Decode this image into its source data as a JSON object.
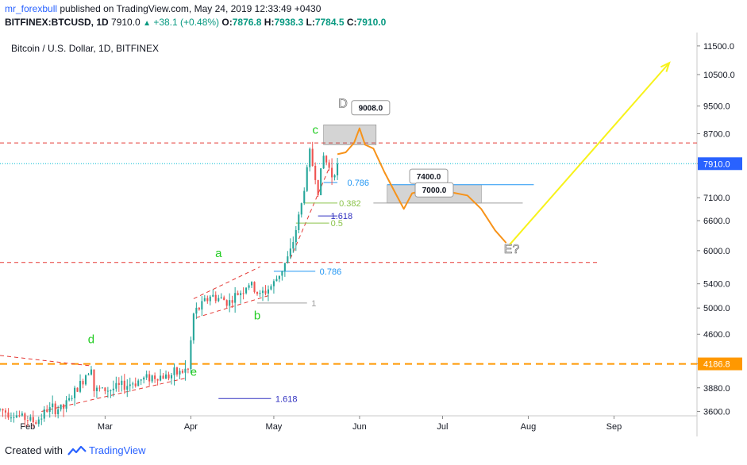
{
  "header": {
    "user": "mr_forexbull",
    "published": "published on TradingView.com, May 24, 2019 12:33:49 +0430",
    "symbol": "BITFINEX:BTCUSD, 1D",
    "last": "7910.0",
    "change": "+38.1 (+0.48%)",
    "o_label": "O:",
    "o_value": "7876.8",
    "h_label": "H:",
    "h_value": "7938.3",
    "l_label": "L:",
    "l_value": "7784.5",
    "c_label": "C:",
    "c_value": "7910.0"
  },
  "footer": {
    "created": "Created with",
    "brand": "TradingView",
    "brand_icon": "tradingview-logo-icon"
  },
  "colors": {
    "up": "#26a69a",
    "down": "#ef5350",
    "path": "#f7931a",
    "arrow": "#f7f21a",
    "wave_label": "#22cc22",
    "fib_blue": "#2196f3",
    "fib_green": "#8bc34a",
    "fib_navy": "#3030c0",
    "red_dash": "#e53935",
    "orange_dash": "#ff9800",
    "last_line": "#00bcd4",
    "last_tag": "#2962ff"
  },
  "chart_data": {
    "type": "candlestick",
    "title": "Bitcoin / U.S. Dollar, 1D, BITFINEX",
    "y_scale": "log",
    "ylim": [
      3550,
      12000
    ],
    "y_ticks": [
      11500,
      10500,
      9500,
      8700,
      7910,
      7100,
      6600,
      6000,
      5400,
      5000,
      4600,
      4186.8,
      3880,
      3600
    ],
    "y_tick_labels": [
      "11500.0",
      "10500.0",
      "9500.0",
      "8700.0",
      "7910.0",
      "7100.0",
      "6600.0",
      "6000.0",
      "5400.0",
      "5000.0",
      "4600.0",
      "4186.8",
      "3880.0",
      "3600.0"
    ],
    "x_start": "2019-01-22",
    "x_end": "2019-10-01",
    "x_ticks": [
      {
        "date": "2019-02-01",
        "label": "Feb"
      },
      {
        "date": "2019-03-01",
        "label": "Mar"
      },
      {
        "date": "2019-04-01",
        "label": "Apr"
      },
      {
        "date": "2019-05-01",
        "label": "May"
      },
      {
        "date": "2019-06-01",
        "label": "Jun"
      },
      {
        "date": "2019-07-01",
        "label": "Jul"
      },
      {
        "date": "2019-08-01",
        "label": "Aug"
      },
      {
        "date": "2019-09-01",
        "label": "Sep"
      }
    ],
    "price_path": [
      [
        "2019-01-22",
        3620
      ],
      [
        "2019-01-28",
        3560
      ],
      [
        "2019-02-04",
        3480
      ],
      [
        "2019-02-08",
        3620
      ],
      [
        "2019-02-14",
        3640
      ],
      [
        "2019-02-20",
        3920
      ],
      [
        "2019-02-24",
        4180
      ],
      [
        "2019-02-25",
        3850
      ],
      [
        "2019-03-03",
        3860
      ],
      [
        "2019-03-10",
        3930
      ],
      [
        "2019-03-17",
        4020
      ],
      [
        "2019-03-24",
        4030
      ],
      [
        "2019-03-31",
        4110
      ],
      [
        "2019-04-02",
        4900
      ],
      [
        "2019-04-08",
        5200
      ],
      [
        "2019-04-15",
        5100
      ],
      [
        "2019-04-22",
        5400
      ],
      [
        "2019-04-26",
        5200
      ],
      [
        "2019-05-01",
        5400
      ],
      [
        "2019-05-07",
        5950
      ],
      [
        "2019-05-11",
        6950
      ],
      [
        "2019-05-14",
        8200
      ],
      [
        "2019-05-17",
        7300
      ],
      [
        "2019-05-19",
        8100
      ],
      [
        "2019-05-22",
        7650
      ],
      [
        "2019-05-24",
        7910
      ]
    ],
    "projection": [
      [
        "2019-05-24",
        8150
      ],
      [
        "2019-05-27",
        8200
      ],
      [
        "2019-05-30",
        8450
      ],
      [
        "2019-06-01",
        8850
      ],
      [
        "2019-06-03",
        8400
      ],
      [
        "2019-06-06",
        8300
      ],
      [
        "2019-06-10",
        7700
      ],
      [
        "2019-06-14",
        7200
      ],
      [
        "2019-06-17",
        6850
      ],
      [
        "2019-06-20",
        7200
      ],
      [
        "2019-06-23",
        7250
      ],
      [
        "2019-06-26",
        7500
      ],
      [
        "2019-06-29",
        7400
      ],
      [
        "2019-07-02",
        7250
      ],
      [
        "2019-07-06",
        7200
      ],
      [
        "2019-07-10",
        7150
      ],
      [
        "2019-07-15",
        6850
      ],
      [
        "2019-07-20",
        6400
      ],
      [
        "2019-07-24",
        6150
      ]
    ],
    "target_arrow": [
      [
        "2019-07-25",
        6100
      ],
      [
        "2019-09-21",
        10900
      ]
    ],
    "horizontal_lines": [
      {
        "price": 8450,
        "from": "2019-01-22",
        "to": "2019-10-01",
        "style": "red-dash"
      },
      {
        "price": 5780,
        "from": "2019-01-22",
        "to": "2019-08-26",
        "style": "red-dash"
      },
      {
        "price": 4186.8,
        "from": "2019-01-22",
        "to": "2019-10-01",
        "style": "orange-dash"
      },
      {
        "price": 7910,
        "from": "2019-01-22",
        "to": "2019-10-01",
        "style": "last-price"
      }
    ],
    "trend_lines": [
      [
        [
          "2019-01-22",
          4300
        ],
        [
          "2019-02-24",
          4160
        ]
      ],
      [
        [
          "2019-02-06",
          3600
        ],
        [
          "2019-03-30",
          4000
        ]
      ],
      [
        [
          "2019-04-02",
          5150
        ],
        [
          "2019-04-26",
          5700
        ]
      ],
      [
        [
          "2019-04-03",
          4850
        ],
        [
          "2019-04-29",
          5200
        ]
      ],
      [
        [
          "2019-05-07",
          5850
        ],
        [
          "2019-05-21",
          7800
        ]
      ]
    ],
    "fib_levels": [
      {
        "label": "0.786",
        "price": 7450,
        "from": "2019-05-19",
        "to": "2019-05-24",
        "label_date": "2019-05-27",
        "color": "fib_blue"
      },
      {
        "label": "0.382",
        "price": 6980,
        "from": "2019-05-12",
        "to": "2019-05-24",
        "label_date": "2019-05-24",
        "color": "fib_green"
      },
      {
        "label": "1.618",
        "price": 6700,
        "from": "2019-05-17",
        "to": "2019-05-24",
        "label_date": "2019-05-21",
        "color": "fib_navy"
      },
      {
        "label": "0.5",
        "price": 6550,
        "from": "2019-05-09",
        "to": "2019-05-21",
        "label_date": "2019-05-21",
        "color": "fib_green"
      },
      {
        "label": "0.786",
        "price": 5620,
        "from": "2019-05-01",
        "to": "2019-05-16",
        "label_date": "2019-05-17",
        "color": "fib_blue"
      },
      {
        "label": "1",
        "price": 5080,
        "from": "2019-04-25",
        "to": "2019-05-13",
        "label_date": "2019-05-14",
        "color": "gray"
      },
      {
        "label": "1.618",
        "price": 3750,
        "from": "2019-04-11",
        "to": "2019-04-30",
        "label_date": "2019-05-01",
        "color": "fib_navy"
      }
    ],
    "wave_labels": [
      {
        "text": "d",
        "date": "2019-02-24",
        "price": 4470
      },
      {
        "text": "e",
        "date": "2019-04-02",
        "price": 4030
      },
      {
        "text": "a",
        "date": "2019-04-11",
        "price": 5880
      },
      {
        "text": "b",
        "date": "2019-04-25",
        "price": 4820
      },
      {
        "text": "c",
        "date": "2019-05-16",
        "price": 8700
      }
    ],
    "big_labels": [
      {
        "text": "D",
        "date": "2019-05-26",
        "price": 9450
      },
      {
        "text": "E?",
        "date": "2019-07-26",
        "price": 5950
      }
    ],
    "callouts": [
      {
        "text": "9008.0",
        "date": "2019-06-05",
        "price": 9450
      },
      {
        "text": "7400.0",
        "date": "2019-06-26",
        "price": 7600
      },
      {
        "text": "7000.0",
        "date": "2019-06-28",
        "price": 7280
      }
    ],
    "zones": [
      {
        "from": "2019-05-19",
        "to": "2019-06-07",
        "low": 8400,
        "high": 8950
      },
      {
        "from": "2019-06-11",
        "to": "2019-07-15",
        "low": 6980,
        "high": 7400
      }
    ],
    "zone_lines": [
      {
        "price": 7400,
        "from": "2019-06-11",
        "to": "2019-08-03",
        "color": "fib_blue"
      },
      {
        "price": 6980,
        "from": "2019-06-06",
        "to": "2019-07-30",
        "color": "gray"
      }
    ]
  }
}
